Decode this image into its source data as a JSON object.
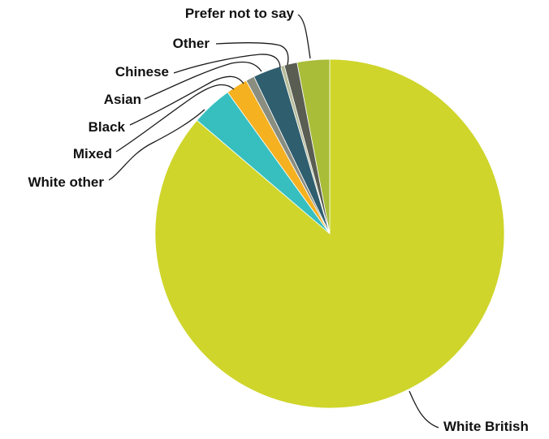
{
  "chart_data": {
    "type": "pie",
    "title": "",
    "start_angle_deg": 0,
    "direction": "clockwise",
    "legend": "none",
    "slices": [
      {
        "label": "White British",
        "value": 86.3,
        "color": "#cfd52a"
      },
      {
        "label": "White other",
        "value": 3.8,
        "color": "#37bfc0"
      },
      {
        "label": "Mixed",
        "value": 2.0,
        "color": "#f5b120"
      },
      {
        "label": "Black",
        "value": 0.8,
        "color": "#8a8e80"
      },
      {
        "label": "Asian",
        "value": 2.6,
        "color": "#2f5e6e"
      },
      {
        "label": "Chinese",
        "value": 0.35,
        "color": "#b7bd9a"
      },
      {
        "label": "Other",
        "value": 1.2,
        "color": "#5a5e52"
      },
      {
        "label": "Prefer not to say",
        "value": 3.0,
        "color": "#a9bd38"
      }
    ]
  }
}
